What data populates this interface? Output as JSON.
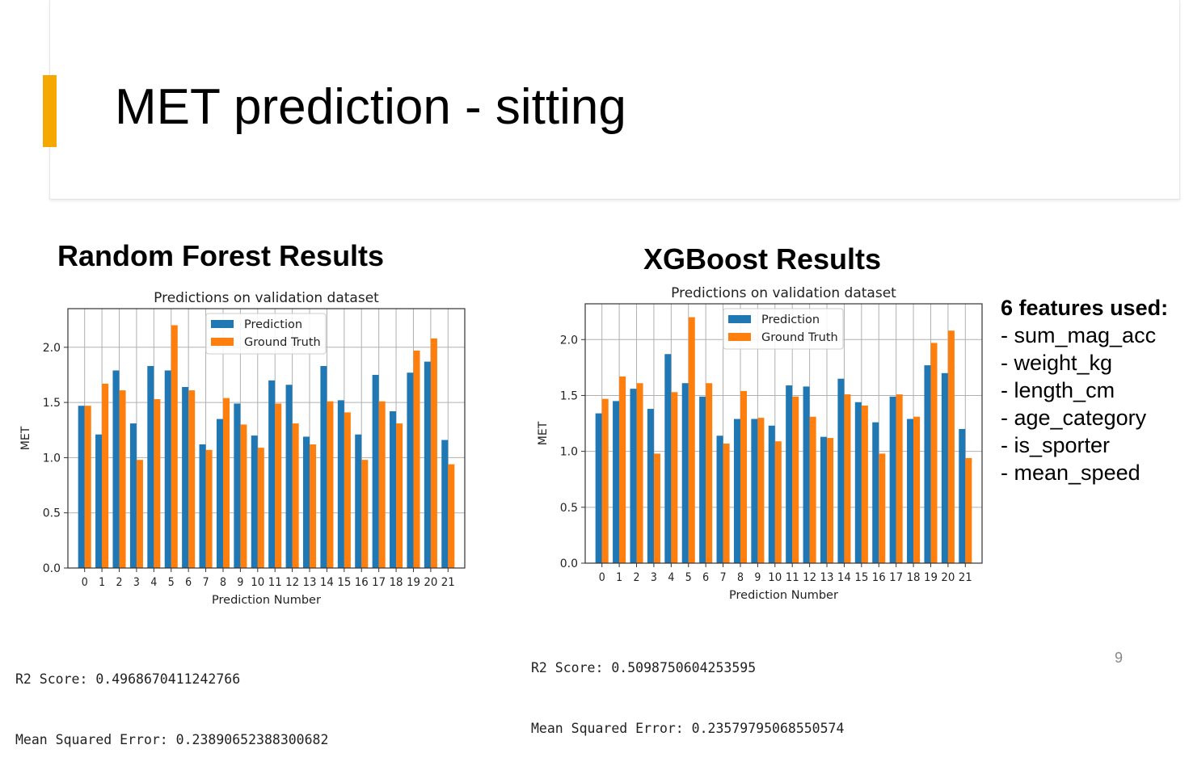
{
  "slide": {
    "title": "MET prediction - sitting",
    "page_number": "9",
    "accent_color": "#f5a800"
  },
  "random_forest": {
    "section_title": "Random Forest Results",
    "r2_line": "R2 Score: 0.4968670411242766",
    "mse_line": "Mean Squared Error: 0.23890652388300682"
  },
  "xgboost": {
    "section_title": "XGBoost Results",
    "r2_line": "R2 Score: 0.5098750604253595",
    "mse_line": "Mean Squared Error: 0.23579795068550574"
  },
  "features": {
    "heading": "6 features used:",
    "items": [
      "- sum_mag_acc",
      "- weight_kg",
      "- length_cm",
      "- age_category",
      "- is_sporter",
      "- mean_speed"
    ]
  },
  "chart_data": [
    {
      "type": "bar",
      "title": "Predictions on validation dataset",
      "xlabel": "Prediction Number",
      "ylabel": "MET",
      "ylim": [
        0,
        2.35
      ],
      "yticks": [
        "0.0",
        "0.5",
        "1.0",
        "1.5",
        "2.0"
      ],
      "grid": true,
      "legend_position": "top-center",
      "categories": [
        "0",
        "1",
        "2",
        "3",
        "4",
        "5",
        "6",
        "7",
        "8",
        "9",
        "10",
        "11",
        "12",
        "13",
        "14",
        "15",
        "16",
        "17",
        "18",
        "19",
        "20",
        "21"
      ],
      "series": [
        {
          "name": "Prediction",
          "color": "#1f77b4",
          "values": [
            1.47,
            1.21,
            1.79,
            1.31,
            1.83,
            1.79,
            1.64,
            1.12,
            1.35,
            1.49,
            1.2,
            1.7,
            1.66,
            1.19,
            1.83,
            1.52,
            1.21,
            1.75,
            1.42,
            1.77,
            1.87,
            1.16
          ]
        },
        {
          "name": "Ground Truth",
          "color": "#ff7f0e",
          "values": [
            1.47,
            1.67,
            1.61,
            0.98,
            1.53,
            2.2,
            1.61,
            1.07,
            1.54,
            1.3,
            1.09,
            1.49,
            1.31,
            1.12,
            1.51,
            1.41,
            0.98,
            1.51,
            1.31,
            1.97,
            2.08,
            0.94
          ]
        }
      ]
    },
    {
      "type": "bar",
      "title": "Predictions on validation dataset",
      "xlabel": "Prediction Number",
      "ylabel": "MET",
      "ylim": [
        0,
        2.32
      ],
      "yticks": [
        "0.0",
        "0.5",
        "1.0",
        "1.5",
        "2.0"
      ],
      "grid": true,
      "legend_position": "top-center",
      "categories": [
        "0",
        "1",
        "2",
        "3",
        "4",
        "5",
        "6",
        "7",
        "8",
        "9",
        "10",
        "11",
        "12",
        "13",
        "14",
        "15",
        "16",
        "17",
        "18",
        "19",
        "20",
        "21"
      ],
      "series": [
        {
          "name": "Prediction",
          "color": "#1f77b4",
          "values": [
            1.34,
            1.45,
            1.56,
            1.38,
            1.87,
            1.61,
            1.49,
            1.14,
            1.29,
            1.29,
            1.23,
            1.59,
            1.58,
            1.13,
            1.65,
            1.44,
            1.26,
            1.49,
            1.29,
            1.77,
            1.7,
            1.2
          ]
        },
        {
          "name": "Ground Truth",
          "color": "#ff7f0e",
          "values": [
            1.47,
            1.67,
            1.61,
            0.98,
            1.53,
            2.2,
            1.61,
            1.07,
            1.54,
            1.3,
            1.09,
            1.49,
            1.31,
            1.12,
            1.51,
            1.41,
            0.98,
            1.51,
            1.31,
            1.97,
            2.08,
            0.94
          ]
        }
      ]
    }
  ]
}
